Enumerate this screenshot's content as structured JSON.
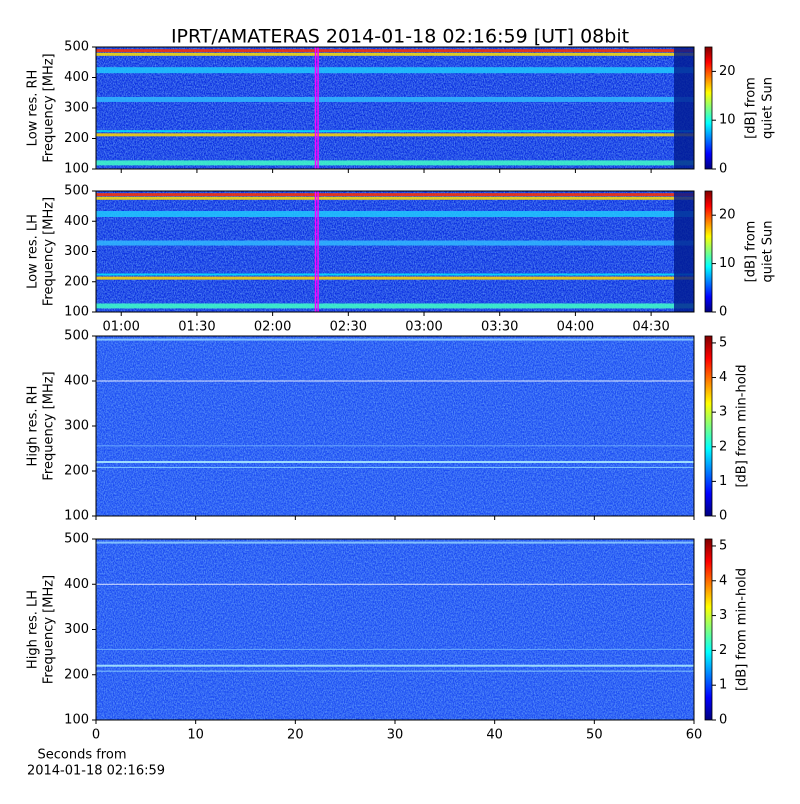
{
  "title": "IPRT/AMATERAS 2014-01-18 02:16:59 [UT]   08bit",
  "xlabel": [
    "Seconds from",
    "2014-01-18 02:16:59"
  ],
  "chart_data": [
    {
      "type": "spectrogram",
      "ylabel": [
        "Low res. RH",
        "Frequency [MHz]"
      ],
      "ylim": [
        100,
        500
      ],
      "yticks": [
        100,
        200,
        300,
        400,
        500
      ],
      "xlim": [
        50,
        287
      ],
      "xticks": [
        {
          "value": 60,
          "label": "01:00"
        },
        {
          "value": 90,
          "label": "01:30"
        },
        {
          "value": 120,
          "label": "02:00"
        },
        {
          "value": 150,
          "label": "02:30"
        },
        {
          "value": 180,
          "label": "03:00"
        },
        {
          "value": 210,
          "label": "03:30"
        },
        {
          "value": 240,
          "label": "04:00"
        },
        {
          "value": 270,
          "label": "04:30"
        }
      ],
      "xtick_labels_shown": false,
      "resolution": "low",
      "marker_lines": [
        137,
        138
      ],
      "marker_color": "#ff00ff",
      "colorbar": {
        "label": [
          "[dB] from",
          "quiet Sun"
        ],
        "lim": [
          0,
          25
        ],
        "ticks": [
          0,
          10,
          20
        ],
        "colormap": "jet"
      }
    },
    {
      "type": "spectrogram",
      "ylabel": [
        "Low res. LH",
        "Frequency [MHz]"
      ],
      "ylim": [
        100,
        500
      ],
      "yticks": [
        100,
        200,
        300,
        400,
        500
      ],
      "xlim": [
        50,
        287
      ],
      "xticks": [
        {
          "value": 60,
          "label": "01:00"
        },
        {
          "value": 90,
          "label": "01:30"
        },
        {
          "value": 120,
          "label": "02:00"
        },
        {
          "value": 150,
          "label": "02:30"
        },
        {
          "value": 180,
          "label": "03:00"
        },
        {
          "value": 210,
          "label": "03:30"
        },
        {
          "value": 240,
          "label": "04:00"
        },
        {
          "value": 270,
          "label": "04:30"
        }
      ],
      "xtick_labels_shown": true,
      "resolution": "low",
      "marker_lines": [
        137,
        138
      ],
      "marker_color": "#ff00ff",
      "colorbar": {
        "label": [
          "[dB] from",
          "quiet Sun"
        ],
        "lim": [
          0,
          25
        ],
        "ticks": [
          0,
          10,
          20
        ],
        "colormap": "jet"
      }
    },
    {
      "type": "spectrogram",
      "ylabel": [
        "High res. RH",
        "Frequency [MHz]"
      ],
      "ylim": [
        100,
        500
      ],
      "yticks": [
        100,
        200,
        300,
        400,
        500
      ],
      "xlim": [
        0,
        60
      ],
      "xticks": [
        0,
        10,
        20,
        30,
        40,
        50,
        60
      ],
      "xtick_labels_shown": false,
      "resolution": "high",
      "colorbar": {
        "label": [
          "[dB] from min-hold"
        ],
        "lim": [
          0,
          5.2
        ],
        "ticks": [
          0,
          1,
          2,
          3,
          4,
          5
        ],
        "colormap": "jet"
      }
    },
    {
      "type": "spectrogram",
      "ylabel": [
        "High res. LH",
        "Frequency [MHz]"
      ],
      "ylim": [
        100,
        500
      ],
      "yticks": [
        100,
        200,
        300,
        400,
        500
      ],
      "xlim": [
        0,
        60
      ],
      "xticks": [
        0,
        10,
        20,
        30,
        40,
        50,
        60
      ],
      "xtick_labels_shown": true,
      "resolution": "high",
      "colorbar": {
        "label": [
          "[dB] from min-hold"
        ],
        "lim": [
          0,
          5.2
        ],
        "ticks": [
          0,
          1,
          2,
          3,
          4,
          5
        ],
        "colormap": "jet"
      }
    }
  ]
}
